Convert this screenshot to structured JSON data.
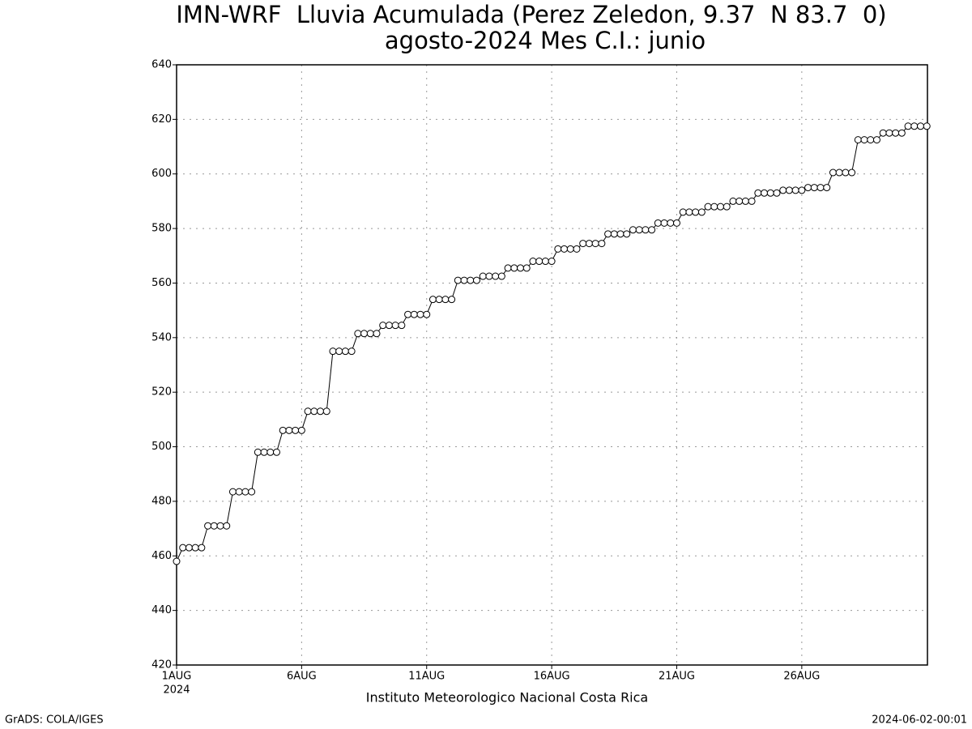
{
  "chart_data": {
    "type": "line",
    "title": "IMN-WRF  Lluvia Acumulada (Perez Zeledon, 9.37  N 83.7  0)",
    "subtitle": "agosto-2024 Mes C.I.: junio",
    "x_label": "Instituto Meteorologico Nacional Costa Rica",
    "x_sublabel": "2024",
    "footer_left": "GrADS: COLA/IGES",
    "footer_right": "2024-06-02-00:01",
    "categories": [
      "1AUG",
      null,
      null,
      null,
      null,
      null,
      null,
      null,
      null,
      null,
      null,
      null,
      null,
      null,
      null,
      null,
      null,
      null,
      null,
      null,
      "6AUG",
      null,
      null,
      null,
      null,
      null,
      null,
      null,
      null,
      null,
      null,
      null,
      null,
      null,
      null,
      null,
      null,
      null,
      null,
      null,
      "11AUG",
      null,
      null,
      null,
      null,
      null,
      null,
      null,
      null,
      null,
      null,
      null,
      null,
      null,
      null,
      null,
      null,
      null,
      null,
      null,
      "16AUG",
      null,
      null,
      null,
      null,
      null,
      null,
      null,
      null,
      null,
      null,
      null,
      null,
      null,
      null,
      null,
      null,
      null,
      null,
      null,
      "21AUG",
      null,
      null,
      null,
      null,
      null,
      null,
      null,
      null,
      null,
      null,
      null,
      null,
      null,
      null,
      null,
      null,
      null,
      null,
      null,
      "26AUG",
      null,
      null,
      null,
      null,
      null,
      null,
      null,
      null,
      null,
      null,
      null,
      null,
      null,
      null,
      null,
      null,
      null,
      null,
      null,
      null
    ],
    "values": [
      458,
      463,
      463,
      463,
      463,
      471,
      471,
      471,
      471,
      483.5,
      483.5,
      483.5,
      483.5,
      498,
      498,
      498,
      498,
      506,
      506,
      506,
      506,
      513,
      513,
      513,
      513,
      535,
      535,
      535,
      535,
      541.5,
      541.5,
      541.5,
      541.5,
      544.5,
      544.5,
      544.5,
      544.5,
      548.5,
      548.5,
      548.5,
      548.5,
      554,
      554,
      554,
      554,
      561,
      561,
      561,
      561,
      562.5,
      562.5,
      562.5,
      562.5,
      565.5,
      565.5,
      565.5,
      565.5,
      568,
      568,
      568,
      568,
      572.5,
      572.5,
      572.5,
      572.5,
      574.5,
      574.5,
      574.5,
      574.5,
      578,
      578,
      578,
      578,
      579.5,
      579.5,
      579.5,
      579.5,
      582,
      582,
      582,
      582,
      586,
      586,
      586,
      586,
      588,
      588,
      588,
      588,
      590,
      590,
      590,
      590,
      593,
      593,
      593,
      593,
      594,
      594,
      594,
      594,
      595,
      595,
      595,
      595,
      600.5,
      600.5,
      600.5,
      600.5,
      612.5,
      612.5,
      612.5,
      612.5,
      615,
      615,
      615,
      615,
      617.5,
      617.5,
      617.5,
      617.5
    ],
    "color": "#000000",
    "ylim": [
      420,
      640
    ],
    "yticks": [
      420,
      440,
      460,
      480,
      500,
      520,
      540,
      560,
      580,
      600,
      620,
      640
    ],
    "grid": true
  }
}
